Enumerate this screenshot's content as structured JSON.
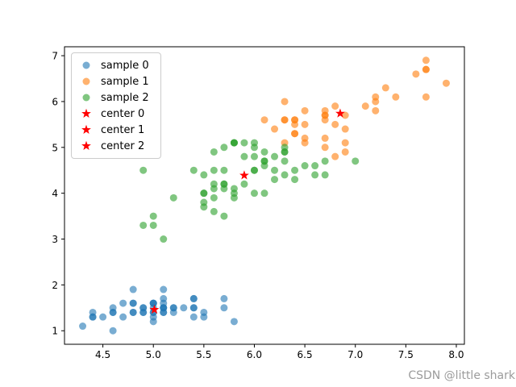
{
  "watermark": "CSDN @little shark",
  "chart_data": {
    "type": "scatter",
    "title": "",
    "xlabel": "",
    "ylabel": "",
    "xlim": [
      4.12,
      8.08
    ],
    "ylim": [
      0.705,
      7.195
    ],
    "xticks": [
      4.5,
      5.0,
      5.5,
      6.0,
      6.5,
      7.0,
      7.5,
      8.0
    ],
    "xtick_labels": [
      "4.5",
      "5.0",
      "5.5",
      "6.0",
      "6.5",
      "7.0",
      "7.5",
      "8.0"
    ],
    "yticks": [
      1,
      2,
      3,
      4,
      5,
      6,
      7
    ],
    "ytick_labels": [
      "1",
      "2",
      "3",
      "4",
      "5",
      "6",
      "7"
    ],
    "grid": false,
    "legend_position": "upper left",
    "axis_color": "#000000",
    "series": [
      {
        "name": "sample 0",
        "marker": "circle",
        "color": "#1f77b4",
        "alpha": 0.6,
        "points": [
          [
            5.1,
            1.4
          ],
          [
            4.9,
            1.4
          ],
          [
            4.7,
            1.3
          ],
          [
            4.6,
            1.5
          ],
          [
            5.0,
            1.4
          ],
          [
            5.4,
            1.7
          ],
          [
            4.6,
            1.4
          ],
          [
            5.0,
            1.5
          ],
          [
            4.4,
            1.4
          ],
          [
            4.9,
            1.5
          ],
          [
            5.4,
            1.5
          ],
          [
            4.8,
            1.6
          ],
          [
            4.8,
            1.4
          ],
          [
            4.3,
            1.1
          ],
          [
            5.8,
            1.2
          ],
          [
            5.7,
            1.5
          ],
          [
            5.4,
            1.3
          ],
          [
            5.1,
            1.4
          ],
          [
            5.7,
            1.7
          ],
          [
            5.1,
            1.5
          ],
          [
            5.4,
            1.7
          ],
          [
            5.1,
            1.5
          ],
          [
            4.6,
            1.0
          ],
          [
            5.1,
            1.7
          ],
          [
            4.8,
            1.9
          ],
          [
            5.0,
            1.6
          ],
          [
            5.0,
            1.6
          ],
          [
            5.2,
            1.5
          ],
          [
            5.2,
            1.4
          ],
          [
            4.7,
            1.6
          ],
          [
            4.8,
            1.6
          ],
          [
            5.4,
            1.5
          ],
          [
            5.2,
            1.5
          ],
          [
            5.5,
            1.4
          ],
          [
            4.9,
            1.5
          ],
          [
            5.0,
            1.2
          ],
          [
            5.5,
            1.3
          ],
          [
            4.9,
            1.4
          ],
          [
            4.4,
            1.3
          ],
          [
            5.1,
            1.5
          ],
          [
            5.0,
            1.3
          ],
          [
            4.5,
            1.3
          ],
          [
            4.4,
            1.3
          ],
          [
            5.0,
            1.6
          ],
          [
            5.1,
            1.9
          ],
          [
            4.8,
            1.4
          ],
          [
            5.1,
            1.6
          ],
          [
            4.6,
            1.4
          ],
          [
            5.3,
            1.5
          ],
          [
            5.0,
            1.4
          ]
        ]
      },
      {
        "name": "sample 1",
        "marker": "circle",
        "color": "#ff7f0e",
        "alpha": 0.6,
        "points": [
          [
            6.9,
            4.9
          ],
          [
            6.8,
            4.8
          ],
          [
            6.7,
            5.0
          ],
          [
            6.3,
            6.0
          ],
          [
            7.1,
            5.9
          ],
          [
            6.3,
            5.6
          ],
          [
            6.5,
            5.8
          ],
          [
            7.6,
            6.6
          ],
          [
            7.3,
            6.3
          ],
          [
            6.7,
            5.8
          ],
          [
            7.2,
            6.1
          ],
          [
            6.5,
            5.1
          ],
          [
            6.4,
            5.3
          ],
          [
            6.8,
            5.5
          ],
          [
            6.4,
            5.3
          ],
          [
            6.5,
            5.5
          ],
          [
            7.7,
            6.7
          ],
          [
            7.7,
            6.9
          ],
          [
            6.9,
            5.7
          ],
          [
            7.7,
            6.7
          ],
          [
            6.7,
            5.7
          ],
          [
            7.2,
            6.0
          ],
          [
            6.4,
            5.6
          ],
          [
            7.2,
            5.8
          ],
          [
            7.4,
            6.1
          ],
          [
            7.9,
            6.4
          ],
          [
            6.4,
            5.6
          ],
          [
            6.3,
            5.1
          ],
          [
            6.1,
            5.6
          ],
          [
            7.7,
            6.1
          ],
          [
            6.3,
            5.6
          ],
          [
            6.4,
            5.5
          ],
          [
            6.9,
            5.4
          ],
          [
            6.7,
            5.6
          ],
          [
            6.9,
            5.1
          ],
          [
            6.8,
            5.9
          ],
          [
            6.7,
            5.7
          ],
          [
            6.7,
            5.2
          ],
          [
            6.5,
            5.2
          ],
          [
            6.2,
            5.4
          ]
        ]
      },
      {
        "name": "sample 2",
        "marker": "circle",
        "color": "#2ca02c",
        "alpha": 0.6,
        "points": [
          [
            7.0,
            4.7
          ],
          [
            6.4,
            4.5
          ],
          [
            5.5,
            4.0
          ],
          [
            6.5,
            4.6
          ],
          [
            5.7,
            4.5
          ],
          [
            6.3,
            4.7
          ],
          [
            4.9,
            3.3
          ],
          [
            6.6,
            4.6
          ],
          [
            5.2,
            3.9
          ],
          [
            5.0,
            3.5
          ],
          [
            5.9,
            4.2
          ],
          [
            6.0,
            4.0
          ],
          [
            6.1,
            4.7
          ],
          [
            5.6,
            3.6
          ],
          [
            6.7,
            4.4
          ],
          [
            5.6,
            4.5
          ],
          [
            5.8,
            4.1
          ],
          [
            6.2,
            4.5
          ],
          [
            5.6,
            3.9
          ],
          [
            5.9,
            4.8
          ],
          [
            6.1,
            4.0
          ],
          [
            6.3,
            4.9
          ],
          [
            6.1,
            4.7
          ],
          [
            6.4,
            4.3
          ],
          [
            6.6,
            4.4
          ],
          [
            6.0,
            4.5
          ],
          [
            5.7,
            3.5
          ],
          [
            5.5,
            3.8
          ],
          [
            5.5,
            3.7
          ],
          [
            5.8,
            3.9
          ],
          [
            6.0,
            5.1
          ],
          [
            5.4,
            4.5
          ],
          [
            6.0,
            4.5
          ],
          [
            6.7,
            4.7
          ],
          [
            6.3,
            4.4
          ],
          [
            5.6,
            4.1
          ],
          [
            5.5,
            4.0
          ],
          [
            5.5,
            4.4
          ],
          [
            6.1,
            4.6
          ],
          [
            5.8,
            4.0
          ],
          [
            5.0,
            3.3
          ],
          [
            5.6,
            4.2
          ],
          [
            5.7,
            4.2
          ],
          [
            5.7,
            4.2
          ],
          [
            6.2,
            4.3
          ],
          [
            5.1,
            3.0
          ],
          [
            5.7,
            4.1
          ],
          [
            5.8,
            5.1
          ],
          [
            4.9,
            4.5
          ],
          [
            5.7,
            5.0
          ],
          [
            5.8,
            5.1
          ],
          [
            6.0,
            5.0
          ],
          [
            5.6,
            4.9
          ],
          [
            6.3,
            4.9
          ],
          [
            6.2,
            4.8
          ],
          [
            6.1,
            4.9
          ],
          [
            6.0,
            4.8
          ],
          [
            5.8,
            5.1
          ],
          [
            6.3,
            5.0
          ],
          [
            5.9,
            5.1
          ]
        ]
      },
      {
        "name": "center 0",
        "marker": "star",
        "color": "#ff0000",
        "alpha": 1,
        "points": [
          [
            5.01,
            1.46
          ]
        ]
      },
      {
        "name": "center 1",
        "marker": "star",
        "color": "#ff0000",
        "alpha": 1,
        "points": [
          [
            6.85,
            5.74
          ]
        ]
      },
      {
        "name": "center 2",
        "marker": "star",
        "color": "#ff0000",
        "alpha": 1,
        "points": [
          [
            5.9,
            4.39
          ]
        ]
      }
    ]
  }
}
